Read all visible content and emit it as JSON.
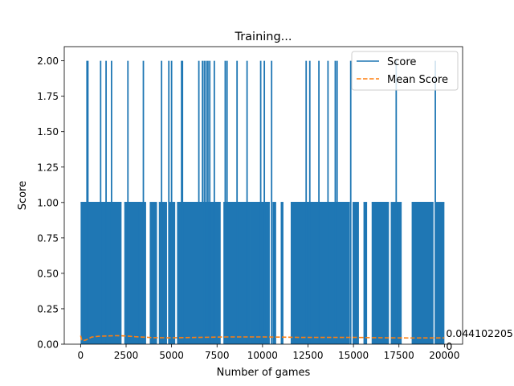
{
  "chart_data": {
    "type": "line",
    "title": "Training...",
    "xlabel": "Number of games",
    "ylabel": "Score",
    "xlim": [
      -900,
      21000
    ],
    "ylim": [
      0,
      2.1
    ],
    "x_ticks": [
      0,
      2500,
      5000,
      7500,
      10000,
      12500,
      15000,
      17500,
      20000
    ],
    "x_tick_labels": [
      "0",
      "2500",
      "5000",
      "7500",
      "10000",
      "12500",
      "15000",
      "17500",
      "20000"
    ],
    "y_ticks": [
      0,
      0.25,
      0.5,
      0.75,
      1.0,
      1.25,
      1.5,
      1.75,
      2.0
    ],
    "y_tick_labels": [
      "0.00",
      "0.25",
      "0.50",
      "0.75",
      "1.00",
      "1.25",
      "1.50",
      "1.75",
      "2.00"
    ],
    "grid": false,
    "legend_position": "top-right",
    "colors": {
      "score": "#1f77b4",
      "mean": "#ff7f0e"
    },
    "series": [
      {
        "name": "Score",
        "style": "solid",
        "color": "#1f77b4",
        "value_range": [
          0,
          2
        ],
        "active_ranges": [
          [
            0,
            2250
          ],
          [
            2400,
            3300
          ],
          [
            3200,
            3600
          ],
          [
            3800,
            4200
          ],
          [
            4300,
            4750
          ],
          [
            4850,
            5200
          ],
          [
            5300,
            7700
          ],
          [
            7850,
            9300
          ],
          [
            9300,
            10400
          ],
          [
            10550,
            10750
          ],
          [
            11000,
            11150
          ],
          [
            11550,
            14800
          ],
          [
            14950,
            15300
          ],
          [
            15550,
            15750
          ],
          [
            16000,
            16950
          ],
          [
            17050,
            17650
          ],
          [
            18200,
            19400
          ],
          [
            19500,
            20000
          ]
        ],
        "peaks_at_2": [
          350,
          400,
          1100,
          1400,
          1700,
          2600,
          3450,
          4450,
          4850,
          5000,
          5550,
          5600,
          6500,
          6700,
          6800,
          6900,
          7000,
          7100,
          7350,
          7950,
          8050,
          8600,
          9150,
          9900,
          10100,
          10500,
          12400,
          12600,
          13100,
          13600,
          14000,
          14100,
          14850,
          17350,
          19500
        ]
      },
      {
        "name": "Mean Score",
        "style": "dashed",
        "color": "#ff7f0e",
        "x": [
          0,
          60,
          150,
          300,
          600,
          1000,
          1500,
          2000,
          2500,
          3000,
          4000,
          5000,
          6000,
          7000,
          8000,
          9000,
          10000,
          11000,
          12000,
          13000,
          14000,
          15000,
          16000,
          17000,
          18000,
          19000,
          19990
        ],
        "y": [
          0.06,
          0.03,
          0.025,
          0.03,
          0.05,
          0.056,
          0.058,
          0.06,
          0.058,
          0.053,
          0.046,
          0.045,
          0.047,
          0.049,
          0.051,
          0.051,
          0.051,
          0.05,
          0.048,
          0.048,
          0.048,
          0.048,
          0.046,
          0.045,
          0.044,
          0.0441,
          0.0441
        ]
      }
    ],
    "annotations": [
      {
        "text": "0.044102205",
        "x": 20000,
        "y": 0.0441
      },
      {
        "text": "0",
        "x": 20000,
        "y": 0
      }
    ]
  }
}
